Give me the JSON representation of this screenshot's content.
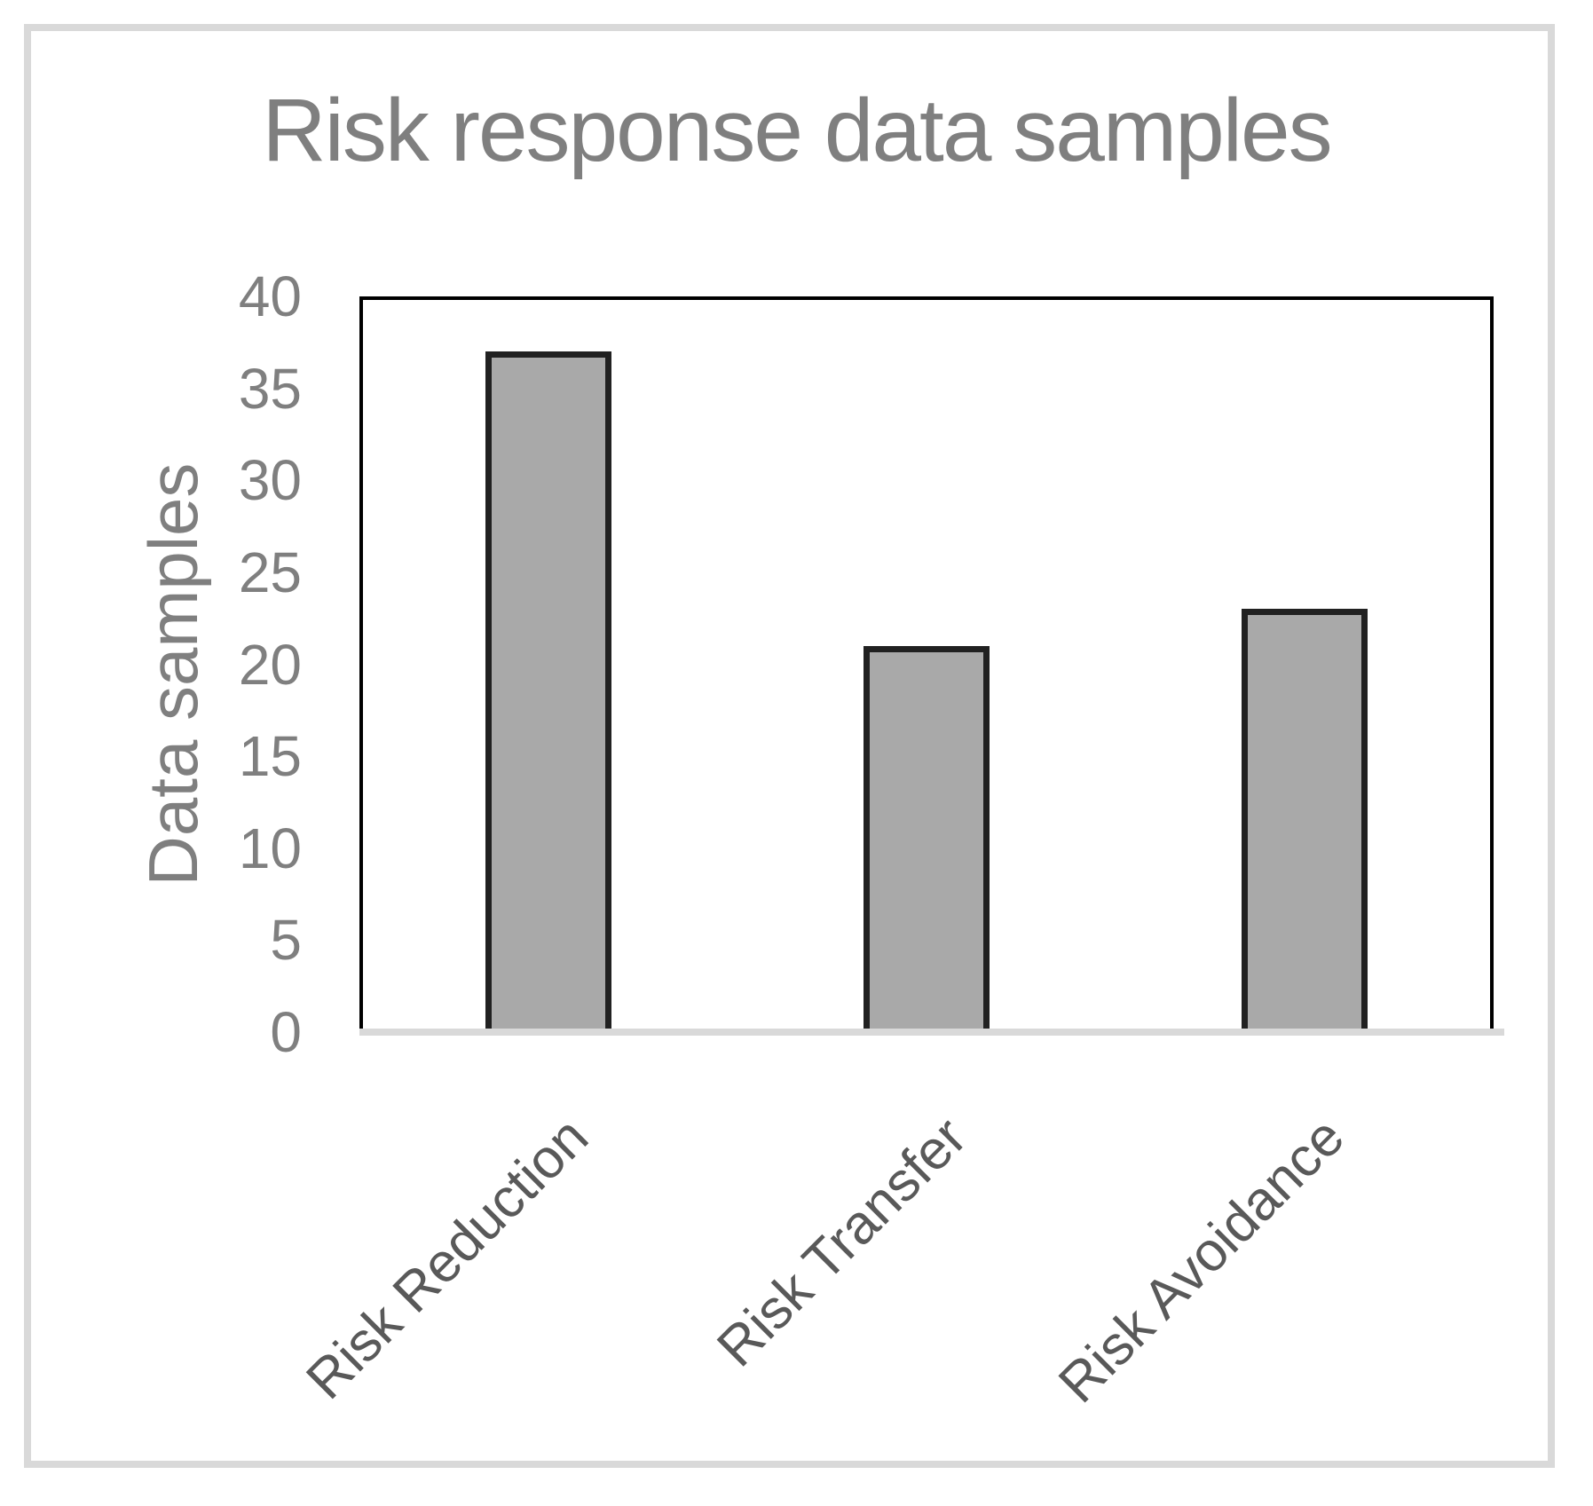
{
  "chart_data": {
    "type": "bar",
    "title": "Risk response data samples",
    "ylabel": "Data samples",
    "xlabel": "",
    "categories": [
      "Risk Reduction",
      "Risk Transfer",
      "Risk Avoidance"
    ],
    "values": [
      37,
      21,
      23
    ],
    "ylim": [
      0,
      40
    ],
    "yticks": [
      0,
      5,
      10,
      15,
      20,
      25,
      30,
      35,
      40
    ],
    "grid": false,
    "legend_position": "none",
    "category_label_rotation_deg": 45,
    "colors": {
      "bar_fill": "#a9a9a9",
      "bar_border": "#212121",
      "plot_border": "#000000",
      "baseline": "#d9d9d9",
      "frame": "#d9d9d9",
      "title_text": "#7f7f7f",
      "tick_text": "#7f7f7f",
      "category_text": "#595959"
    }
  }
}
